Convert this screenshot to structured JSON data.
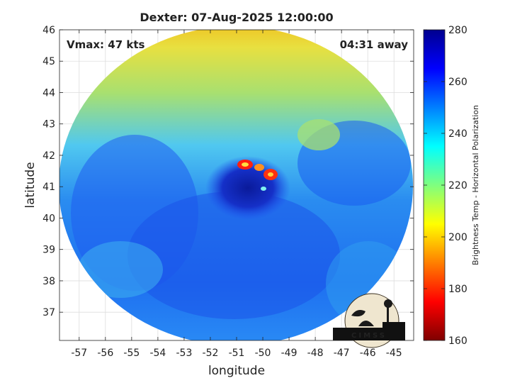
{
  "chart_data": {
    "type": "heatmap",
    "title": "Dexter: 07-Aug-2025 12:00:00",
    "xlabel": "longitude",
    "ylabel": "latitude",
    "xlim": [
      -57.75,
      -44.25
    ],
    "ylim": [
      36.1,
      46
    ],
    "x_ticks": [
      -57,
      -56,
      -55,
      -54,
      -53,
      -52,
      -51,
      -50,
      -49,
      -48,
      -47,
      -46,
      -45
    ],
    "y_ticks": [
      37,
      38,
      39,
      40,
      41,
      42,
      43,
      44,
      45,
      46
    ],
    "grid": true,
    "annotations": {
      "top_left": "Vmax: 47 kts",
      "top_right": "04:31 away"
    },
    "storm_center": {
      "lon": -50.9,
      "lat": 41.0
    },
    "colorbar": {
      "label": "Brightness Temp - Horizontal Polarization",
      "min": 160,
      "max": 280,
      "ticks": [
        160,
        180,
        200,
        220,
        240,
        260,
        280
      ],
      "colormap": [
        "#7f0000",
        "#ff0000",
        "#ff7f00",
        "#ffff00",
        "#7fff7f",
        "#00ffff",
        "#007fff",
        "#0000ff",
        "#00008f"
      ]
    },
    "logo_text": "CIMSS"
  }
}
